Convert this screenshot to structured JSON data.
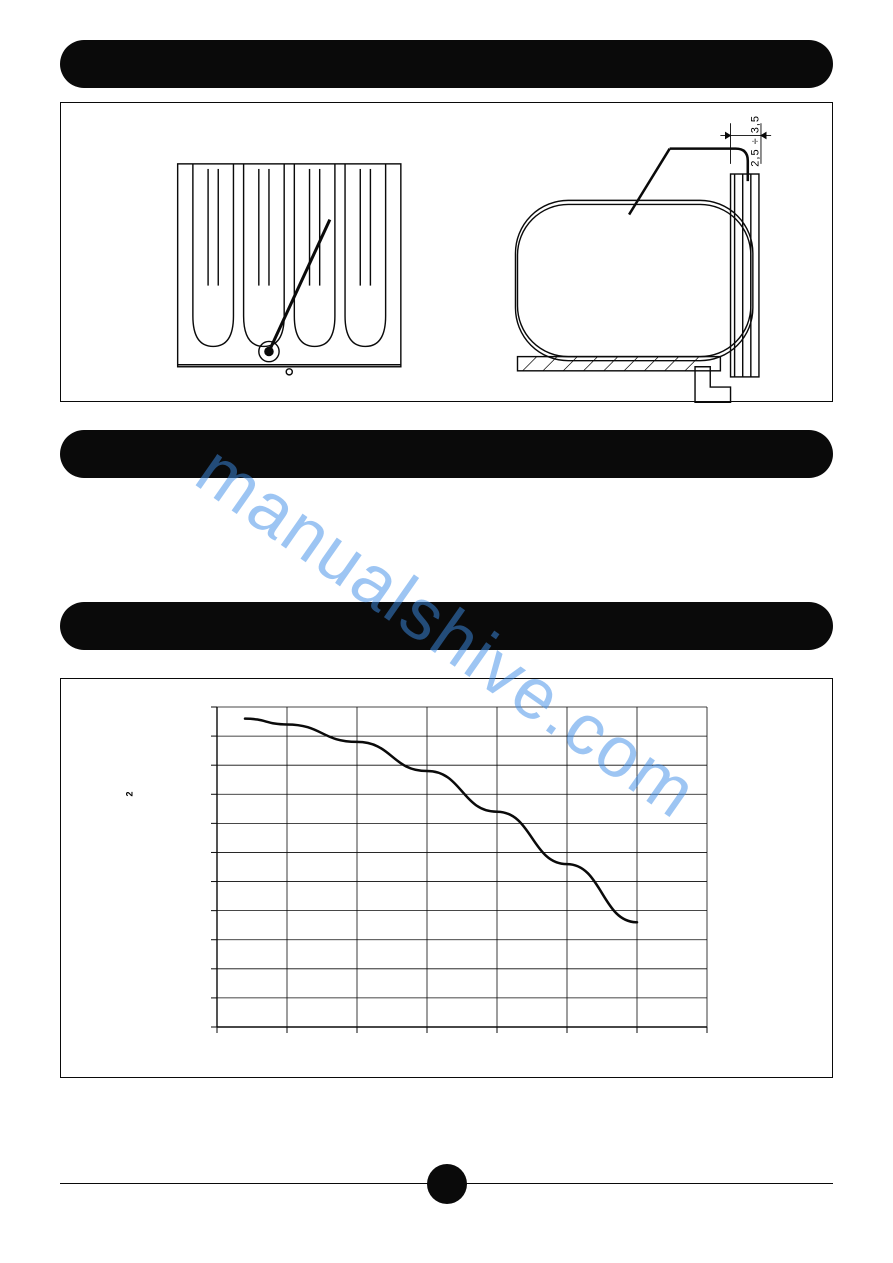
{
  "watermark_text": "manualshive.com",
  "figure1": {
    "dimension_label": "2,5 ÷ 3,5",
    "border_color": "#0a0a0a"
  },
  "chart": {
    "type": "line",
    "x_ticks": [
      0,
      1,
      2,
      3,
      4,
      5,
      6,
      7
    ],
    "y_ticks": [
      0,
      1,
      2,
      3,
      4,
      5,
      6,
      7,
      8,
      9,
      10,
      11
    ],
    "curve_points": [
      {
        "x": 0.4,
        "y": 10.6
      },
      {
        "x": 1.0,
        "y": 10.4
      },
      {
        "x": 2.0,
        "y": 9.8
      },
      {
        "x": 3.0,
        "y": 8.8
      },
      {
        "x": 4.0,
        "y": 7.4
      },
      {
        "x": 5.0,
        "y": 5.6
      },
      {
        "x": 6.0,
        "y": 3.6
      }
    ],
    "line_color": "#0a0a0a",
    "line_width": 2.5,
    "grid_color": "#0a0a0a",
    "grid_width": 0.8,
    "background": "#ffffff",
    "y_axis_exponent": "2"
  },
  "bar_color": "#0a0a0a",
  "bar_radius": 24
}
